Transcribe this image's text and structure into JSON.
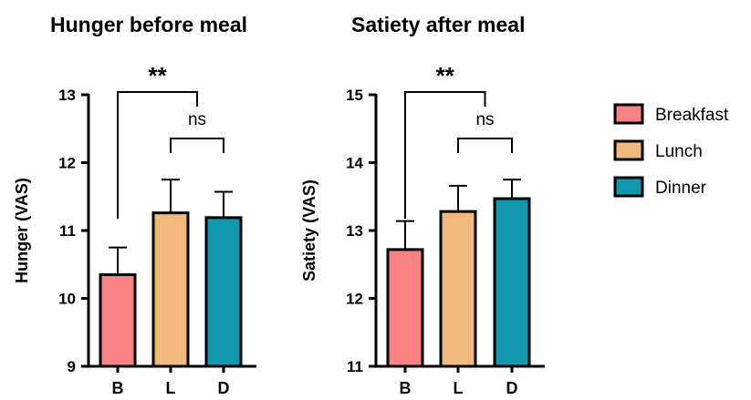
{
  "chart_data": [
    {
      "type": "bar",
      "title": "Hunger before meal",
      "ylabel": "Hunger (VAS)",
      "categories": [
        "B",
        "L",
        "D"
      ],
      "series": [
        {
          "values": [
            10.35,
            11.26,
            11.19
          ]
        }
      ],
      "error_bars": [
        0.4,
        0.49,
        0.38
      ],
      "ylim": [
        9,
        13
      ],
      "yticks": [
        "9",
        "10",
        "11",
        "12",
        "13"
      ],
      "significance": [
        {
          "from": "B",
          "to_midpoint_of": [
            "L",
            "D"
          ],
          "label": "**"
        },
        {
          "from": "L",
          "to": "D",
          "label": "ns"
        }
      ]
    },
    {
      "type": "bar",
      "title": "Satiety after meal",
      "ylabel": "Satiety (VAS)",
      "categories": [
        "B",
        "L",
        "D"
      ],
      "series": [
        {
          "values": [
            12.72,
            13.28,
            13.47
          ]
        }
      ],
      "error_bars": [
        0.42,
        0.38,
        0.28
      ],
      "ylim": [
        11,
        15
      ],
      "yticks": [
        "11",
        "12",
        "13",
        "14",
        "15"
      ],
      "significance": [
        {
          "from": "B",
          "to_midpoint_of": [
            "L",
            "D"
          ],
          "label": "**"
        },
        {
          "from": "L",
          "to": "D",
          "label": "ns"
        }
      ]
    }
  ],
  "legend": {
    "placement": "right",
    "items": [
      {
        "label": "Breakfast",
        "color": "#F88282"
      },
      {
        "label": "Lunch",
        "color": "#F2B97C"
      },
      {
        "label": "Dinner",
        "color": "#1198AE"
      }
    ]
  },
  "style": {
    "bar_colors": [
      "#F88282",
      "#F2B97C",
      "#1198AE"
    ],
    "stroke_color": "#000000"
  }
}
